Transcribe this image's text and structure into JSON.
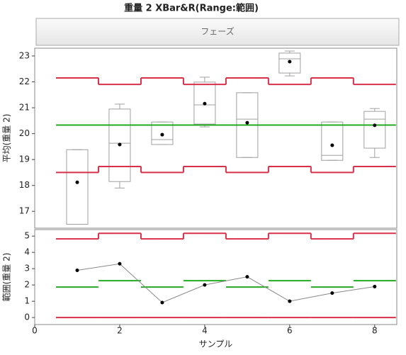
{
  "title": "重量 2  XBar&R(Range:範囲)",
  "phase_label": "フェーズ",
  "chart_data": [
    {
      "type": "box",
      "ylabel": "平均(重量 2)",
      "x": [
        1,
        2,
        3,
        4,
        5,
        6,
        7,
        8
      ],
      "means": [
        18.12,
        19.58,
        19.96,
        21.16,
        20.42,
        22.78,
        19.55,
        20.32
      ],
      "min": [
        16.5,
        17.9,
        19.58,
        20.26,
        19.08,
        22.23,
        18.97,
        19.08
      ],
      "q1": [
        16.5,
        18.15,
        19.58,
        20.37,
        19.08,
        22.34,
        18.97,
        19.44
      ],
      "median": [
        16.5,
        19.63,
        19.77,
        21.11,
        20.56,
        22.89,
        19.16,
        20.56
      ],
      "q3": [
        19.38,
        20.95,
        20.45,
        21.99,
        21.58,
        23.11,
        20.45,
        20.86
      ],
      "max": [
        19.38,
        21.14,
        20.45,
        22.18,
        21.58,
        23.19,
        20.45,
        20.97
      ],
      "ucl": [
        22.15,
        21.9,
        22.15,
        21.9,
        22.15,
        21.9,
        22.15,
        21.9
      ],
      "lcl": [
        18.5,
        18.73,
        18.5,
        18.73,
        18.5,
        18.73,
        18.5,
        18.73
      ],
      "center": 20.33,
      "xlim": [
        0,
        8.52
      ],
      "ylim": [
        16.35,
        23.3
      ],
      "yticks": [
        17,
        18,
        19,
        20,
        21,
        22,
        23
      ],
      "limit_color": "#d9304a",
      "center_color": "#22aa22",
      "box_color": "#a0a0a0",
      "point_color": "#000000"
    },
    {
      "type": "line",
      "ylabel": "範囲(重量 2)",
      "xlabel": "サンプル",
      "x": [
        1,
        2,
        3,
        4,
        5,
        6,
        7,
        8
      ],
      "values": [
        2.9,
        3.3,
        0.92,
        2.0,
        2.5,
        1.0,
        1.5,
        1.9
      ],
      "ucl": [
        4.83,
        5.17,
        4.83,
        5.17,
        4.83,
        5.17,
        4.83,
        5.17
      ],
      "lcl": [
        0,
        0,
        0,
        0,
        0,
        0,
        0,
        0
      ],
      "center": [
        1.87,
        2.26,
        1.87,
        2.26,
        1.87,
        2.26,
        1.87,
        2.26
      ],
      "xlim": [
        0,
        8.52
      ],
      "ylim": [
        -0.43,
        5.4
      ],
      "yticks": [
        0,
        1,
        2,
        3,
        4,
        5
      ],
      "xticks": [
        0,
        2,
        4,
        6,
        8
      ],
      "limit_color": "#d9304a",
      "center_color": "#22aa22",
      "line_color": "#888888",
      "point_color": "#000000"
    }
  ]
}
